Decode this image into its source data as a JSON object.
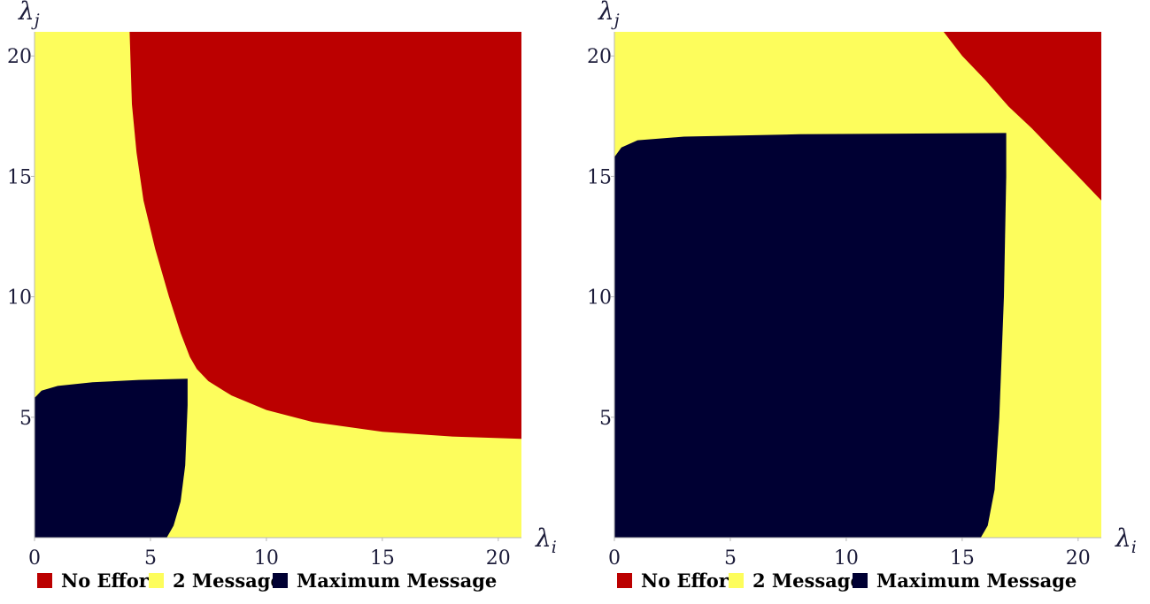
{
  "colors": {
    "no_effort": "#bb0000",
    "two_message": "#fdfd5c",
    "maximum_message": "#000033"
  },
  "chart_data": [
    {
      "type": "area",
      "xlabel": "λi",
      "ylabel": "λj",
      "xlim": [
        0,
        21
      ],
      "ylim": [
        0,
        21
      ],
      "xticks": [
        "0",
        "5",
        "10",
        "15",
        "20"
      ],
      "yticks": [
        "5",
        "10",
        "15",
        "20"
      ],
      "grid": false,
      "legend_position": "bottom",
      "series": [
        {
          "name": "No Effort",
          "color_key": "no_effort",
          "points": [
            [
              4.1,
              21
            ],
            [
              4.2,
              18
            ],
            [
              4.4,
              16
            ],
            [
              4.7,
              14
            ],
            [
              5.2,
              12
            ],
            [
              5.8,
              10
            ],
            [
              6.3,
              8.5
            ],
            [
              6.7,
              7.5
            ],
            [
              7,
              7
            ],
            [
              7.5,
              6.5
            ],
            [
              8.5,
              5.9
            ],
            [
              10,
              5.3
            ],
            [
              12,
              4.8
            ],
            [
              15,
              4.4
            ],
            [
              18,
              4.2
            ],
            [
              21,
              4.1
            ],
            [
              21,
              21
            ]
          ]
        },
        {
          "name": "2 Message",
          "color_key": "two_message",
          "points": []
        },
        {
          "name": "Maximum Message",
          "color_key": "maximum_message",
          "points": [
            [
              0,
              0
            ],
            [
              0,
              5.8
            ],
            [
              0.3,
              6.1
            ],
            [
              1,
              6.3
            ],
            [
              2.5,
              6.45
            ],
            [
              4.5,
              6.55
            ],
            [
              6.6,
              6.6
            ],
            [
              6.6,
              5.5
            ],
            [
              6.5,
              3
            ],
            [
              6.3,
              1.5
            ],
            [
              6,
              0.5
            ],
            [
              5.7,
              0
            ]
          ]
        }
      ],
      "legend": [
        "No Effort",
        "2 Message",
        "Maximum Message"
      ]
    },
    {
      "type": "area",
      "xlabel": "λi",
      "ylabel": "λj",
      "xlim": [
        0,
        21
      ],
      "ylim": [
        0,
        21
      ],
      "xticks": [
        "0",
        "5",
        "10",
        "15",
        "20"
      ],
      "yticks": [
        "5",
        "10",
        "15",
        "20"
      ],
      "grid": false,
      "legend_position": "bottom",
      "series": [
        {
          "name": "No Effort",
          "color_key": "no_effort",
          "points": [
            [
              14.2,
              21
            ],
            [
              15,
              20
            ],
            [
              16,
              19
            ],
            [
              17,
              17.9
            ],
            [
              18,
              17
            ],
            [
              19,
              16
            ],
            [
              20,
              15
            ],
            [
              21,
              14
            ],
            [
              21,
              21
            ]
          ]
        },
        {
          "name": "2 Message",
          "color_key": "two_message",
          "points": []
        },
        {
          "name": "Maximum Message",
          "color_key": "maximum_message",
          "points": [
            [
              0,
              0
            ],
            [
              0,
              15.8
            ],
            [
              0.3,
              16.2
            ],
            [
              1,
              16.5
            ],
            [
              3,
              16.65
            ],
            [
              8,
              16.75
            ],
            [
              16.9,
              16.8
            ],
            [
              16.9,
              15
            ],
            [
              16.8,
              10
            ],
            [
              16.6,
              5
            ],
            [
              16.4,
              2
            ],
            [
              16.1,
              0.5
            ],
            [
              15.8,
              0
            ]
          ]
        }
      ],
      "legend": [
        "No Effort",
        "2 Message",
        "Maximum Message"
      ]
    }
  ]
}
